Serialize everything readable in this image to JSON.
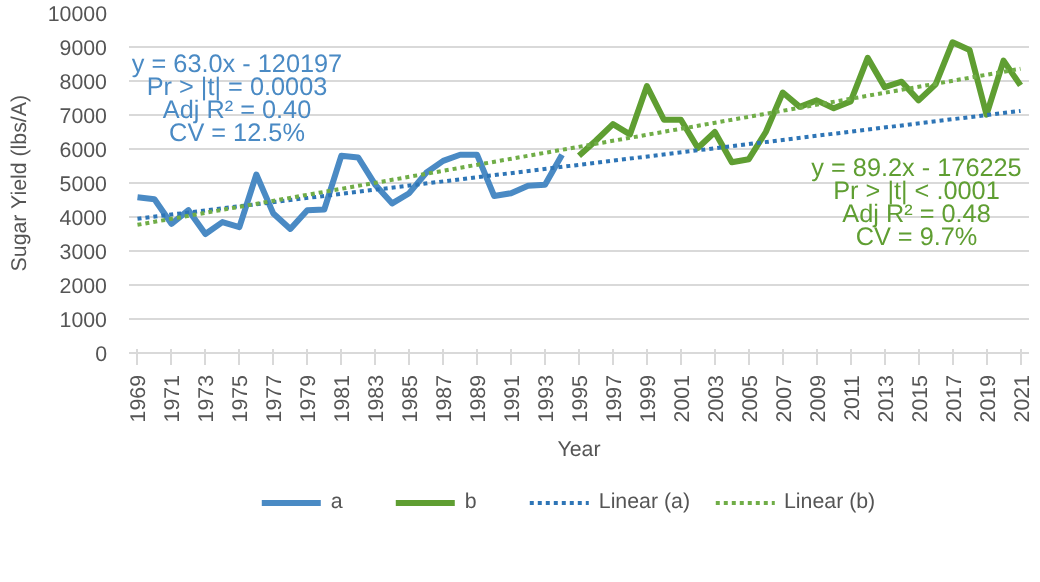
{
  "chart_data": {
    "type": "line",
    "xlabel": "Year",
    "ylabel": "Sugar Yield (lbs/A)",
    "xlim": [
      1968.5,
      2021.5
    ],
    "xticks": [
      1969,
      1971,
      1973,
      1975,
      1977,
      1979,
      1981,
      1983,
      1985,
      1987,
      1989,
      1991,
      1993,
      1995,
      1997,
      1999,
      2001,
      2003,
      2005,
      2007,
      2009,
      2011,
      2013,
      2015,
      2017,
      2019,
      2021
    ],
    "ylim": [
      0,
      10000
    ],
    "yticks": [
      0,
      1000,
      2000,
      3000,
      4000,
      5000,
      6000,
      7000,
      8000,
      9000,
      10000
    ],
    "grid": "y",
    "legend": "bottom",
    "marker": "none",
    "series": [
      {
        "name": "a",
        "color": "#4a8ac4",
        "line_style": "solid",
        "x": [
          1969,
          1970,
          1971,
          1972,
          1973,
          1974,
          1975,
          1976,
          1977,
          1978,
          1979,
          1980,
          1981,
          1982,
          1983,
          1984,
          1985,
          1986,
          1987,
          1988,
          1989,
          1990,
          1991,
          1992,
          1993,
          1994
        ],
        "values": [
          4580,
          4520,
          3800,
          4200,
          3500,
          3850,
          3700,
          5250,
          4100,
          3650,
          4200,
          4220,
          5800,
          5750,
          4950,
          4400,
          4700,
          5300,
          5650,
          5830,
          5830,
          4620,
          4700,
          4920,
          4950,
          5830
        ]
      },
      {
        "name": "b",
        "color": "#5f9e32",
        "line_style": "solid",
        "x": [
          1995,
          1996,
          1997,
          1998,
          1999,
          2000,
          2001,
          2002,
          2003,
          2004,
          2005,
          2006,
          2007,
          2008,
          2009,
          2010,
          2011,
          2012,
          2013,
          2014,
          2015,
          2016,
          2017,
          2018,
          2019,
          2020,
          2021
        ],
        "values": [
          5800,
          6250,
          6730,
          6430,
          7850,
          6860,
          6860,
          6030,
          6500,
          5610,
          5700,
          6500,
          7660,
          7240,
          7430,
          7200,
          7400,
          8680,
          7820,
          7980,
          7430,
          7900,
          9140,
          8910,
          7010,
          8600,
          7870
        ]
      },
      {
        "name": "Linear (a)",
        "color": "#2e75b6",
        "line_style": "dotted",
        "x": [
          1969,
          2021
        ],
        "values": [
          3950,
          7120
        ]
      },
      {
        "name": "Linear (b)",
        "color": "#70ad47",
        "line_style": "dotted",
        "x": [
          1969,
          2021
        ],
        "values": [
          3770,
          8360
        ]
      }
    ],
    "annotations": [
      "y = 63.0x - 120197\nPr > |t| = 0.0003\nAdj R² = 0.40\nCV = 12.5%",
      "y = 89.2x - 176225\nPr > |t| < .0001\nAdj R² = 0.48\nCV = 9.7%"
    ]
  }
}
